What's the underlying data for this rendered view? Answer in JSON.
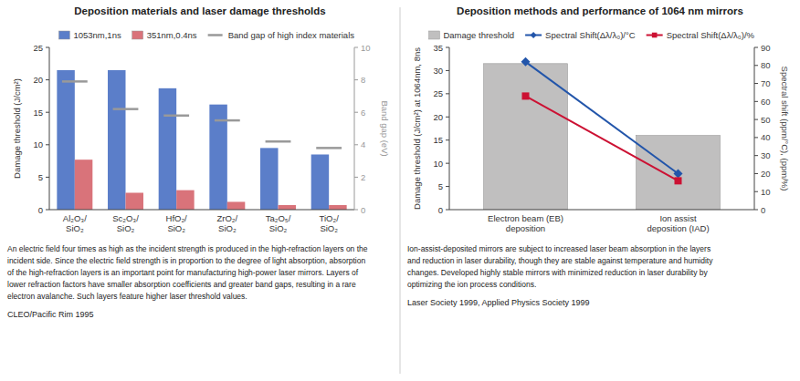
{
  "chart_data": [
    {
      "type": "bar",
      "title": "Deposition materials and laser damage thresholds",
      "categories": [
        "Al₂O₃/\nSiO₂",
        "Sc₂O₃/\nSiO₂",
        "HfO₂/\nSiO₂",
        "ZrO₂/\nSiO₂",
        "Ta₂O₅/\nSiO₂",
        "TiO₂/\nSiO₂"
      ],
      "series": [
        {
          "name": "1053nm,1ns",
          "color": "#5b7ec9",
          "values": [
            21.5,
            21.5,
            18.7,
            16.2,
            9.5,
            8.5
          ]
        },
        {
          "name": "351nm,0.4ns",
          "color": "#d9737a",
          "values": [
            7.7,
            2.6,
            3.0,
            1.2,
            0.7,
            0.7
          ]
        },
        {
          "name": "Band gap of high index materials",
          "type": "scatter",
          "marker": "dash",
          "axis": "y2",
          "color": "#999999",
          "values": [
            7.9,
            6.2,
            5.8,
            5.5,
            4.2,
            3.8
          ]
        }
      ],
      "ylabel": "Damage threshold (J/cm²)",
      "y2label": "Band gap (eV)",
      "ylim": [
        0,
        25
      ],
      "yticks": [
        0,
        5,
        10,
        15,
        20,
        25
      ],
      "y2lim": [
        0,
        10
      ],
      "y2ticks": [
        0,
        2,
        4,
        6,
        8,
        10
      ],
      "grid": false,
      "legend": "upper right",
      "annotations": [
        "An electric field four times as high as the incident strength is produced in the high-refraction layers on the",
        "incident side. Since the electric field strength is in proportion to the degree of light absorption, absorption",
        "of the high-refraction layers is an important point for manufacturing high-power laser mirrors. Layers of",
        "lower refraction factors have smaller absorption coefficients and greater band gaps, resulting in a rare",
        "electron avalanche. Such layers feature higher laser threshold values.",
        "CLEO/Pacific Rim 1995"
      ]
    },
    {
      "type": "bar",
      "title": "Deposition methods and performance of 1064 nm mirrors",
      "categories": [
        "Electron beam (EB)\ndeposition",
        "Ion assist\ndeposition (IAD)"
      ],
      "series": [
        {
          "name": "Damage threshold",
          "color": "#c0bfbf",
          "values": [
            31.5,
            16.0
          ]
        },
        {
          "name": "Spectral Shift(Δλ/λ₀)/°C",
          "type": "line",
          "marker": "diamond",
          "axis": "y2",
          "color": "#2255aa",
          "values": [
            82.0,
            20.0
          ]
        },
        {
          "name": "Spectral Shift(Δλ/λ₀)/%",
          "type": "line",
          "marker": "square",
          "axis": "y2",
          "color": "#cc1133",
          "values": [
            63.0,
            16.0
          ]
        }
      ],
      "ylabel": "Damage threshold (J/cm²) at 1064nm, 8ns",
      "y2label": "Spectral shift (ppm/°C), (ppm/%)",
      "ylim": [
        0,
        35
      ],
      "yticks": [
        0,
        5,
        10,
        15,
        20,
        25,
        30,
        35
      ],
      "y2lim": [
        0,
        90
      ],
      "y2ticks": [
        0,
        10,
        20,
        30,
        40,
        50,
        60,
        70,
        80,
        90
      ],
      "grid": false,
      "legend": "upper right",
      "annotations": [
        "Ion-assist-deposited mirrors are subject to increased laser beam absorption in the layers",
        "and reduction in laser durability, though they are stable against temperature and humidity",
        "changes. Developed highly stable mirrors with minimized reduction in laser durability by",
        "optimizing the ion process conditions.",
        "Laser Society 1999, Applied Physics Society 1999"
      ]
    }
  ]
}
